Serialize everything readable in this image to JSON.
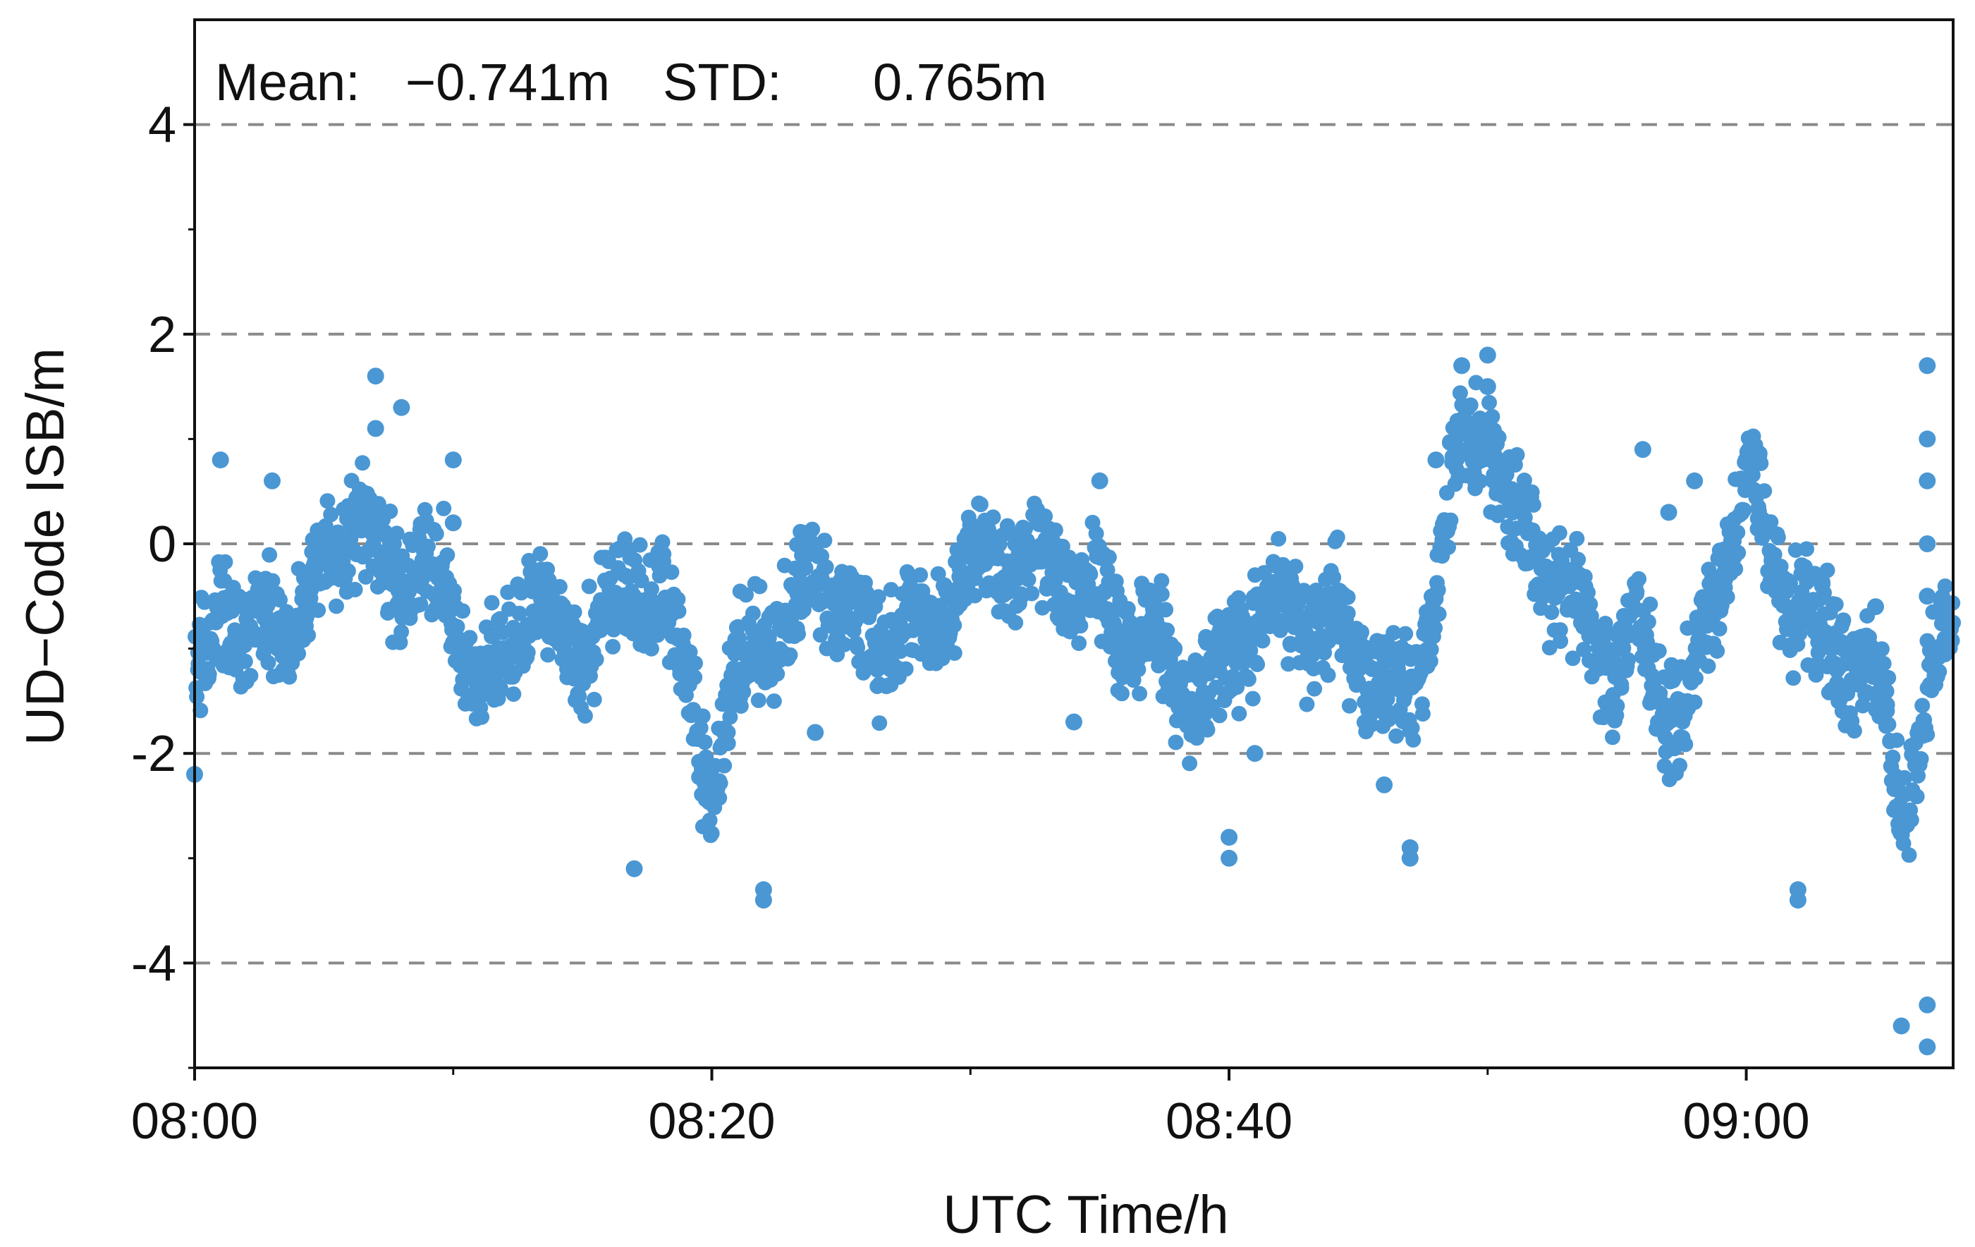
{
  "chart_data": {
    "type": "scatter",
    "title": "",
    "xlabel": "UTC Time/h",
    "ylabel": "UD−Code ISB/m",
    "x_ticks": [
      "08:00",
      "08:20",
      "08:40",
      "09:00"
    ],
    "y_ticks": [
      "4",
      "2",
      "0",
      "-2",
      "-4"
    ],
    "xlim": [
      "08:00",
      "09:08"
    ],
    "ylim": [
      -5,
      5
    ],
    "grid": "horizontal dashed at -4, -2, 0, 2, 4",
    "legend": "none",
    "annotations": {
      "mean_label": "Mean:",
      "mean_value": "−0.741m",
      "std_label": "STD:",
      "std_value": "0.765m"
    },
    "marker_color": "#4a97d4",
    "series": [
      {
        "x": [
          "08:00",
          "08:01",
          "08:02",
          "08:03",
          "08:04",
          "08:05",
          "08:06",
          "08:07",
          "08:08",
          "08:09",
          "08:10",
          "08:11",
          "08:12",
          "08:13",
          "08:14",
          "08:15",
          "08:16",
          "08:17",
          "08:18",
          "08:19",
          "08:20",
          "08:21",
          "08:22",
          "08:23",
          "08:24",
          "08:25",
          "08:26",
          "08:27",
          "08:28",
          "08:29",
          "08:30",
          "08:31",
          "08:32",
          "08:33",
          "08:34",
          "08:35",
          "08:36",
          "08:37",
          "08:38",
          "08:39",
          "08:40",
          "08:41",
          "08:42",
          "08:43",
          "08:44",
          "08:45",
          "08:46",
          "08:47",
          "08:48",
          "08:49",
          "08:50",
          "08:51",
          "08:52",
          "08:53",
          "08:54",
          "08:55",
          "08:56",
          "08:57",
          "08:58",
          "08:59",
          "09:00",
          "09:01",
          "09:02",
          "09:03",
          "09:04",
          "09:05",
          "09:06",
          "09:07",
          "09:08"
        ],
        "y": [
          -1.4,
          -0.5,
          -1.0,
          -0.6,
          -0.8,
          -0.2,
          0.3,
          -0.1,
          -0.4,
          -0.3,
          -0.5,
          -1.4,
          -1.2,
          -0.3,
          -1.0,
          -0.9,
          -0.6,
          -0.5,
          -0.5,
          -1.2,
          -2.3,
          -1.2,
          -0.7,
          -1.0,
          -0.1,
          -0.7,
          -0.8,
          -0.9,
          -0.8,
          -0.7,
          -0.3,
          -0.1,
          -0.2,
          -0.2,
          -0.4,
          -0.5,
          -0.8,
          -0.9,
          -1.2,
          -1.5,
          -1.1,
          -0.7,
          -0.6,
          -0.7,
          -0.8,
          -1.0,
          -1.4,
          -1.6,
          -0.3,
          0.9,
          1.2,
          0.1,
          0.0,
          -0.5,
          -0.9,
          -1.1,
          -1.0,
          -1.5,
          -1.4,
          -0.3,
          0.7,
          -0.2,
          -0.6,
          -0.9,
          -1.1,
          -1.3,
          -2.5,
          -1.5,
          -0.8
        ],
        "outliers": [
          {
            "x": "08:00",
            "y": -2.2
          },
          {
            "x": "08:01",
            "y": 0.8
          },
          {
            "x": "08:03",
            "y": 0.6
          },
          {
            "x": "08:07",
            "y": 1.6
          },
          {
            "x": "08:07",
            "y": 1.1
          },
          {
            "x": "08:08",
            "y": 1.3
          },
          {
            "x": "08:10",
            "y": 0.8
          },
          {
            "x": "08:10",
            "y": 0.2
          },
          {
            "x": "08:17",
            "y": -3.1
          },
          {
            "x": "08:22",
            "y": -3.3
          },
          {
            "x": "08:22",
            "y": -3.4
          },
          {
            "x": "08:24",
            "y": -1.8
          },
          {
            "x": "08:34",
            "y": -1.7
          },
          {
            "x": "08:35",
            "y": 0.6
          },
          {
            "x": "08:40",
            "y": -2.8
          },
          {
            "x": "08:40",
            "y": -3.0
          },
          {
            "x": "08:41",
            "y": -2.0
          },
          {
            "x": "08:46",
            "y": -2.3
          },
          {
            "x": "08:47",
            "y": -2.9
          },
          {
            "x": "08:47",
            "y": -3.0
          },
          {
            "x": "08:48",
            "y": 0.8
          },
          {
            "x": "08:49",
            "y": 1.7
          },
          {
            "x": "08:50",
            "y": 1.8
          },
          {
            "x": "08:50",
            "y": 1.5
          },
          {
            "x": "08:56",
            "y": 0.9
          },
          {
            "x": "08:57",
            "y": 0.3
          },
          {
            "x": "08:58",
            "y": 0.6
          },
          {
            "x": "09:02",
            "y": -3.3
          },
          {
            "x": "09:02",
            "y": -3.4
          },
          {
            "x": "09:05",
            "y": -0.6
          },
          {
            "x": "09:06",
            "y": -4.6
          },
          {
            "x": "09:07",
            "y": -4.4
          },
          {
            "x": "09:07",
            "y": -4.8
          },
          {
            "x": "09:07",
            "y": -0.5
          },
          {
            "x": "09:07",
            "y": 0.0
          },
          {
            "x": "09:07",
            "y": 0.6
          },
          {
            "x": "09:07",
            "y": 1.0
          },
          {
            "x": "09:07",
            "y": 1.7
          }
        ]
      }
    ]
  }
}
